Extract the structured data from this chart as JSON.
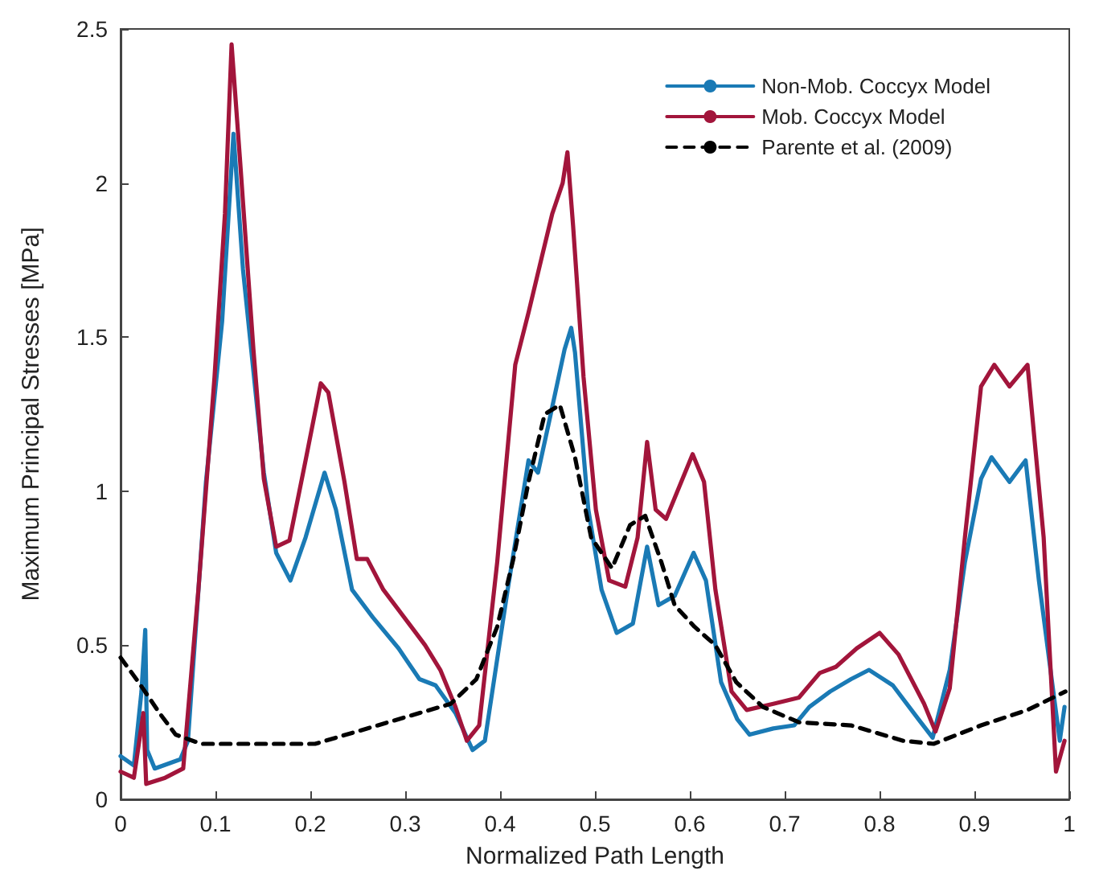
{
  "chart_data": {
    "type": "line",
    "xlabel": "Normalized Path Length",
    "ylabel": "Maximum Principal Stresses [MPa]",
    "xlim": [
      0,
      1
    ],
    "ylim": [
      0,
      2.5
    ],
    "xticks": [
      0,
      0.1,
      0.2,
      0.3,
      0.4,
      0.5,
      0.6,
      0.7,
      0.8,
      0.9,
      1
    ],
    "yticks": [
      0,
      0.5,
      1,
      1.5,
      2,
      2.5
    ],
    "legend": "top right",
    "marker": "none",
    "series": [
      {
        "name": "Non-Mob. Coccyx Model",
        "color": "#1a7ab5",
        "line_style": "solid",
        "x": [
          0,
          0.014,
          0.022,
          0.026,
          0.028,
          0.036,
          0.063,
          0.071,
          0.09,
          0.107,
          0.119,
          0.129,
          0.151,
          0.164,
          0.179,
          0.195,
          0.215,
          0.227,
          0.244,
          0.266,
          0.293,
          0.315,
          0.332,
          0.353,
          0.371,
          0.384,
          0.408,
          0.43,
          0.44,
          0.452,
          0.468,
          0.475,
          0.479,
          0.493,
          0.507,
          0.523,
          0.54,
          0.555,
          0.567,
          0.584,
          0.604,
          0.617,
          0.633,
          0.65,
          0.663,
          0.688,
          0.71,
          0.726,
          0.748,
          0.77,
          0.789,
          0.814,
          0.841,
          0.856,
          0.874,
          0.89,
          0.907,
          0.918,
          0.937,
          0.954,
          0.968,
          0.984,
          0.99,
          0.995
        ],
        "values": [
          0.14,
          0.11,
          0.35,
          0.55,
          0.16,
          0.1,
          0.13,
          0.19,
          1.03,
          1.55,
          2.16,
          1.72,
          1.06,
          0.8,
          0.71,
          0.85,
          1.06,
          0.94,
          0.68,
          0.59,
          0.49,
          0.39,
          0.37,
          0.28,
          0.16,
          0.19,
          0.68,
          1.1,
          1.06,
          1.23,
          1.46,
          1.53,
          1.45,
          0.94,
          0.68,
          0.54,
          0.57,
          0.82,
          0.63,
          0.66,
          0.8,
          0.71,
          0.38,
          0.26,
          0.21,
          0.23,
          0.24,
          0.3,
          0.35,
          0.39,
          0.42,
          0.37,
          0.26,
          0.2,
          0.42,
          0.77,
          1.04,
          1.11,
          1.03,
          1.1,
          0.71,
          0.33,
          0.19,
          0.3
        ]
      },
      {
        "name": "Mob. Coccyx Model",
        "color": "#a2153b",
        "line_style": "solid",
        "x": [
          0,
          0.014,
          0.024,
          0.027,
          0.047,
          0.066,
          0.082,
          0.099,
          0.11,
          0.117,
          0.126,
          0.14,
          0.151,
          0.164,
          0.178,
          0.195,
          0.211,
          0.219,
          0.236,
          0.249,
          0.26,
          0.277,
          0.304,
          0.321,
          0.337,
          0.353,
          0.365,
          0.378,
          0.397,
          0.416,
          0.43,
          0.444,
          0.455,
          0.466,
          0.471,
          0.477,
          0.488,
          0.501,
          0.515,
          0.532,
          0.545,
          0.555,
          0.564,
          0.575,
          0.603,
          0.615,
          0.627,
          0.644,
          0.66,
          0.688,
          0.715,
          0.737,
          0.754,
          0.776,
          0.8,
          0.82,
          0.847,
          0.859,
          0.874,
          0.89,
          0.907,
          0.921,
          0.937,
          0.956,
          0.973,
          0.986,
          0.995
        ],
        "values": [
          0.09,
          0.07,
          0.28,
          0.05,
          0.07,
          0.1,
          0.68,
          1.37,
          1.9,
          2.45,
          2.07,
          1.46,
          1.04,
          0.82,
          0.84,
          1.1,
          1.35,
          1.32,
          1.03,
          0.78,
          0.78,
          0.68,
          0.57,
          0.5,
          0.42,
          0.3,
          0.19,
          0.24,
          0.77,
          1.41,
          1.58,
          1.76,
          1.9,
          2.0,
          2.1,
          1.86,
          1.37,
          0.94,
          0.71,
          0.69,
          0.85,
          1.16,
          0.94,
          0.91,
          1.12,
          1.03,
          0.68,
          0.35,
          0.29,
          0.31,
          0.33,
          0.41,
          0.43,
          0.49,
          0.54,
          0.47,
          0.31,
          0.22,
          0.36,
          0.85,
          1.34,
          1.41,
          1.34,
          1.41,
          0.85,
          0.09,
          0.19
        ]
      },
      {
        "name": "Parente et al. (2009)",
        "color": "#000000",
        "line_style": "dashed",
        "x": [
          0,
          0.019,
          0.041,
          0.058,
          0.085,
          0.14,
          0.205,
          0.249,
          0.304,
          0.348,
          0.375,
          0.397,
          0.414,
          0.43,
          0.447,
          0.463,
          0.479,
          0.496,
          0.518,
          0.537,
          0.553,
          0.57,
          0.584,
          0.605,
          0.627,
          0.649,
          0.677,
          0.715,
          0.77,
          0.825,
          0.857,
          0.907,
          0.956,
          0.996
        ],
        "values": [
          0.46,
          0.38,
          0.28,
          0.21,
          0.18,
          0.18,
          0.18,
          0.22,
          0.27,
          0.31,
          0.39,
          0.56,
          0.78,
          1.03,
          1.25,
          1.28,
          1.11,
          0.85,
          0.75,
          0.89,
          0.92,
          0.77,
          0.63,
          0.56,
          0.5,
          0.38,
          0.3,
          0.25,
          0.24,
          0.19,
          0.18,
          0.24,
          0.29,
          0.35
        ]
      }
    ]
  }
}
